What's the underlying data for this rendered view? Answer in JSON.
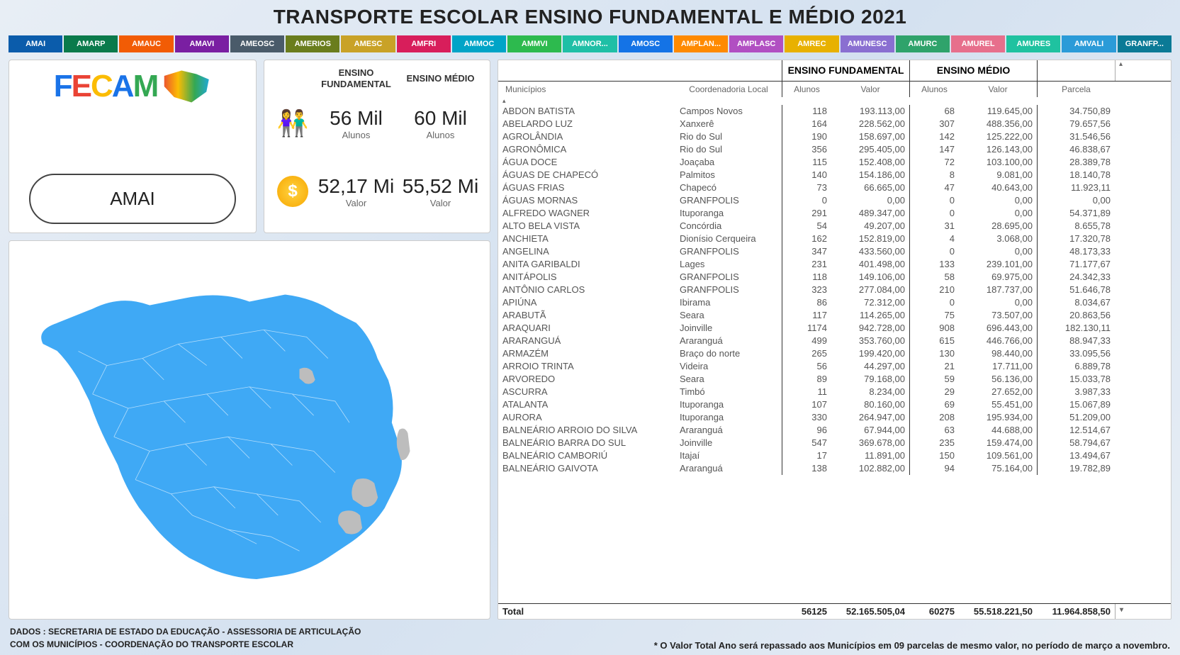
{
  "title": "TRANSPORTE ESCOLAR ENSINO FUNDAMENTAL E MÉDIO 2021",
  "tabs": [
    {
      "label": "AMAI",
      "color": "#0b5cab"
    },
    {
      "label": "AMARP",
      "color": "#0a7a4b"
    },
    {
      "label": "AMAUC",
      "color": "#f25c05"
    },
    {
      "label": "AMAVI",
      "color": "#7a1fa2"
    },
    {
      "label": "AMEOSC",
      "color": "#4a5b6a"
    },
    {
      "label": "AMERIOS",
      "color": "#6a7d1d"
    },
    {
      "label": "AMESC",
      "color": "#c9a227"
    },
    {
      "label": "AMFRI",
      "color": "#d81e5b"
    },
    {
      "label": "AMMOC",
      "color": "#00a4c7"
    },
    {
      "label": "AMMVI",
      "color": "#2dba4e"
    },
    {
      "label": "AMNOR...",
      "color": "#1fbfa6"
    },
    {
      "label": "AMOSC",
      "color": "#1473e6"
    },
    {
      "label": "AMPLAN...",
      "color": "#ff8a00"
    },
    {
      "label": "AMPLASC",
      "color": "#b14fc2"
    },
    {
      "label": "AMREC",
      "color": "#e8b100"
    },
    {
      "label": "AMUNESC",
      "color": "#8a6fd1"
    },
    {
      "label": "AMURC",
      "color": "#2fa36b"
    },
    {
      "label": "AMUREL",
      "color": "#e76f8c"
    },
    {
      "label": "AMURES",
      "color": "#1fc2a0"
    },
    {
      "label": "AMVALI",
      "color": "#2b9bd8"
    },
    {
      "label": "GRANFP...",
      "color": "#0b7a96"
    }
  ],
  "selected_region": "AMAI",
  "stats": {
    "col1_header": "ENSINO FUNDAMENTAL",
    "col2_header": "ENSINO MÉDIO",
    "row1": {
      "icon": "people",
      "v1": "56 Mil",
      "v2": "60 Mil",
      "label": "Alunos"
    },
    "row2": {
      "icon": "dollar",
      "v1": "52,17 Mi",
      "v2": "55,52 Mi",
      "label": "Valor"
    }
  },
  "table": {
    "group_headers": {
      "ef": "ENSINO FUNDAMENTAL",
      "em": "ENSINO MÉDIO"
    },
    "sub_headers": {
      "mun": "Municípios",
      "coord": "Coordenadoria Local",
      "al": "Alunos",
      "val": "Valor",
      "parc": "Parcela"
    },
    "rows": [
      {
        "mun": "ABDON BATISTA",
        "coord": "Campos Novos",
        "efa": "118",
        "efv": "193.113,00",
        "ema": "68",
        "emv": "119.645,00",
        "parc": "34.750,89"
      },
      {
        "mun": "ABELARDO LUZ",
        "coord": "Xanxerê",
        "efa": "164",
        "efv": "228.562,00",
        "ema": "307",
        "emv": "488.356,00",
        "parc": "79.657,56"
      },
      {
        "mun": "AGROLÂNDIA",
        "coord": "Rio do Sul",
        "efa": "190",
        "efv": "158.697,00",
        "ema": "142",
        "emv": "125.222,00",
        "parc": "31.546,56"
      },
      {
        "mun": "AGRONÔMICA",
        "coord": "Rio do Sul",
        "efa": "356",
        "efv": "295.405,00",
        "ema": "147",
        "emv": "126.143,00",
        "parc": "46.838,67"
      },
      {
        "mun": "ÁGUA DOCE",
        "coord": "Joaçaba",
        "efa": "115",
        "efv": "152.408,00",
        "ema": "72",
        "emv": "103.100,00",
        "parc": "28.389,78"
      },
      {
        "mun": "ÁGUAS DE CHAPECÓ",
        "coord": "Palmitos",
        "efa": "140",
        "efv": "154.186,00",
        "ema": "8",
        "emv": "9.081,00",
        "parc": "18.140,78"
      },
      {
        "mun": "ÁGUAS FRIAS",
        "coord": "Chapecó",
        "efa": "73",
        "efv": "66.665,00",
        "ema": "47",
        "emv": "40.643,00",
        "parc": "11.923,11"
      },
      {
        "mun": "ÁGUAS MORNAS",
        "coord": "GRANFPOLIS",
        "efa": "0",
        "efv": "0,00",
        "ema": "0",
        "emv": "0,00",
        "parc": "0,00"
      },
      {
        "mun": "ALFREDO WAGNER",
        "coord": "Ituporanga",
        "efa": "291",
        "efv": "489.347,00",
        "ema": "0",
        "emv": "0,00",
        "parc": "54.371,89"
      },
      {
        "mun": "ALTO BELA VISTA",
        "coord": "Concórdia",
        "efa": "54",
        "efv": "49.207,00",
        "ema": "31",
        "emv": "28.695,00",
        "parc": "8.655,78"
      },
      {
        "mun": "ANCHIETA",
        "coord": "Dionísio Cerqueira",
        "efa": "162",
        "efv": "152.819,00",
        "ema": "4",
        "emv": "3.068,00",
        "parc": "17.320,78"
      },
      {
        "mun": "ANGELINA",
        "coord": "GRANFPOLIS",
        "efa": "347",
        "efv": "433.560,00",
        "ema": "0",
        "emv": "0,00",
        "parc": "48.173,33"
      },
      {
        "mun": "ANITA GARIBALDI",
        "coord": "Lages",
        "efa": "231",
        "efv": "401.498,00",
        "ema": "133",
        "emv": "239.101,00",
        "parc": "71.177,67"
      },
      {
        "mun": "ANITÁPOLIS",
        "coord": "GRANFPOLIS",
        "efa": "118",
        "efv": "149.106,00",
        "ema": "58",
        "emv": "69.975,00",
        "parc": "24.342,33"
      },
      {
        "mun": "ANTÔNIO CARLOS",
        "coord": "GRANFPOLIS",
        "efa": "323",
        "efv": "277.084,00",
        "ema": "210",
        "emv": "187.737,00",
        "parc": "51.646,78"
      },
      {
        "mun": "APIÚNA",
        "coord": "Ibirama",
        "efa": "86",
        "efv": "72.312,00",
        "ema": "0",
        "emv": "0,00",
        "parc": "8.034,67"
      },
      {
        "mun": "ARABUTÃ",
        "coord": "Seara",
        "efa": "117",
        "efv": "114.265,00",
        "ema": "75",
        "emv": "73.507,00",
        "parc": "20.863,56"
      },
      {
        "mun": "ARAQUARI",
        "coord": "Joinville",
        "efa": "1174",
        "efv": "942.728,00",
        "ema": "908",
        "emv": "696.443,00",
        "parc": "182.130,11"
      },
      {
        "mun": "ARARANGUÁ",
        "coord": "Araranguá",
        "efa": "499",
        "efv": "353.760,00",
        "ema": "615",
        "emv": "446.766,00",
        "parc": "88.947,33"
      },
      {
        "mun": "ARMAZÉM",
        "coord": "Braço do norte",
        "efa": "265",
        "efv": "199.420,00",
        "ema": "130",
        "emv": "98.440,00",
        "parc": "33.095,56"
      },
      {
        "mun": "ARROIO TRINTA",
        "coord": "Videira",
        "efa": "56",
        "efv": "44.297,00",
        "ema": "21",
        "emv": "17.711,00",
        "parc": "6.889,78"
      },
      {
        "mun": "ARVOREDO",
        "coord": "Seara",
        "efa": "89",
        "efv": "79.168,00",
        "ema": "59",
        "emv": "56.136,00",
        "parc": "15.033,78"
      },
      {
        "mun": "ASCURRA",
        "coord": "Timbó",
        "efa": "11",
        "efv": "8.234,00",
        "ema": "29",
        "emv": "27.652,00",
        "parc": "3.987,33"
      },
      {
        "mun": "ATALANTA",
        "coord": "Ituporanga",
        "efa": "107",
        "efv": "80.160,00",
        "ema": "69",
        "emv": "55.451,00",
        "parc": "15.067,89"
      },
      {
        "mun": "AURORA",
        "coord": "Ituporanga",
        "efa": "330",
        "efv": "264.947,00",
        "ema": "208",
        "emv": "195.934,00",
        "parc": "51.209,00"
      },
      {
        "mun": "BALNEÁRIO ARROIO DO SILVA",
        "coord": "Araranguá",
        "efa": "96",
        "efv": "67.944,00",
        "ema": "63",
        "emv": "44.688,00",
        "parc": "12.514,67"
      },
      {
        "mun": "BALNEÁRIO BARRA DO SUL",
        "coord": "Joinville",
        "efa": "547",
        "efv": "369.678,00",
        "ema": "235",
        "emv": "159.474,00",
        "parc": "58.794,67"
      },
      {
        "mun": "BALNEÁRIO CAMBORIÚ",
        "coord": "Itajaí",
        "efa": "17",
        "efv": "11.891,00",
        "ema": "150",
        "emv": "109.561,00",
        "parc": "13.494,67"
      },
      {
        "mun": "BALNEÁRIO GAIVOTA",
        "coord": "Araranguá",
        "efa": "138",
        "efv": "102.882,00",
        "ema": "94",
        "emv": "75.164,00",
        "parc": "19.782,89"
      }
    ],
    "total": {
      "label": "Total",
      "efa": "56125",
      "efv": "52.165.505,04",
      "ema": "60275",
      "emv": "55.518.221,50",
      "parc": "11.964.858,50"
    }
  },
  "footer": {
    "left1": "DADOS : SECRETARIA DE ESTADO DA EDUCAÇÃO - ASSESSORIA DE ARTICULAÇÃO",
    "left2": "COM OS MUNICÍPIOS - COORDENAÇÃO DO TRANSPORTE ESCOLAR",
    "right": "* O Valor Total Ano será repassado aos Municípios em 09 parcelas de mesmo valor, no período de março a novembro."
  },
  "map": {
    "fill": "#3fa9f5",
    "stroke": "#ffffff",
    "inactive": "#bdbdbd"
  }
}
